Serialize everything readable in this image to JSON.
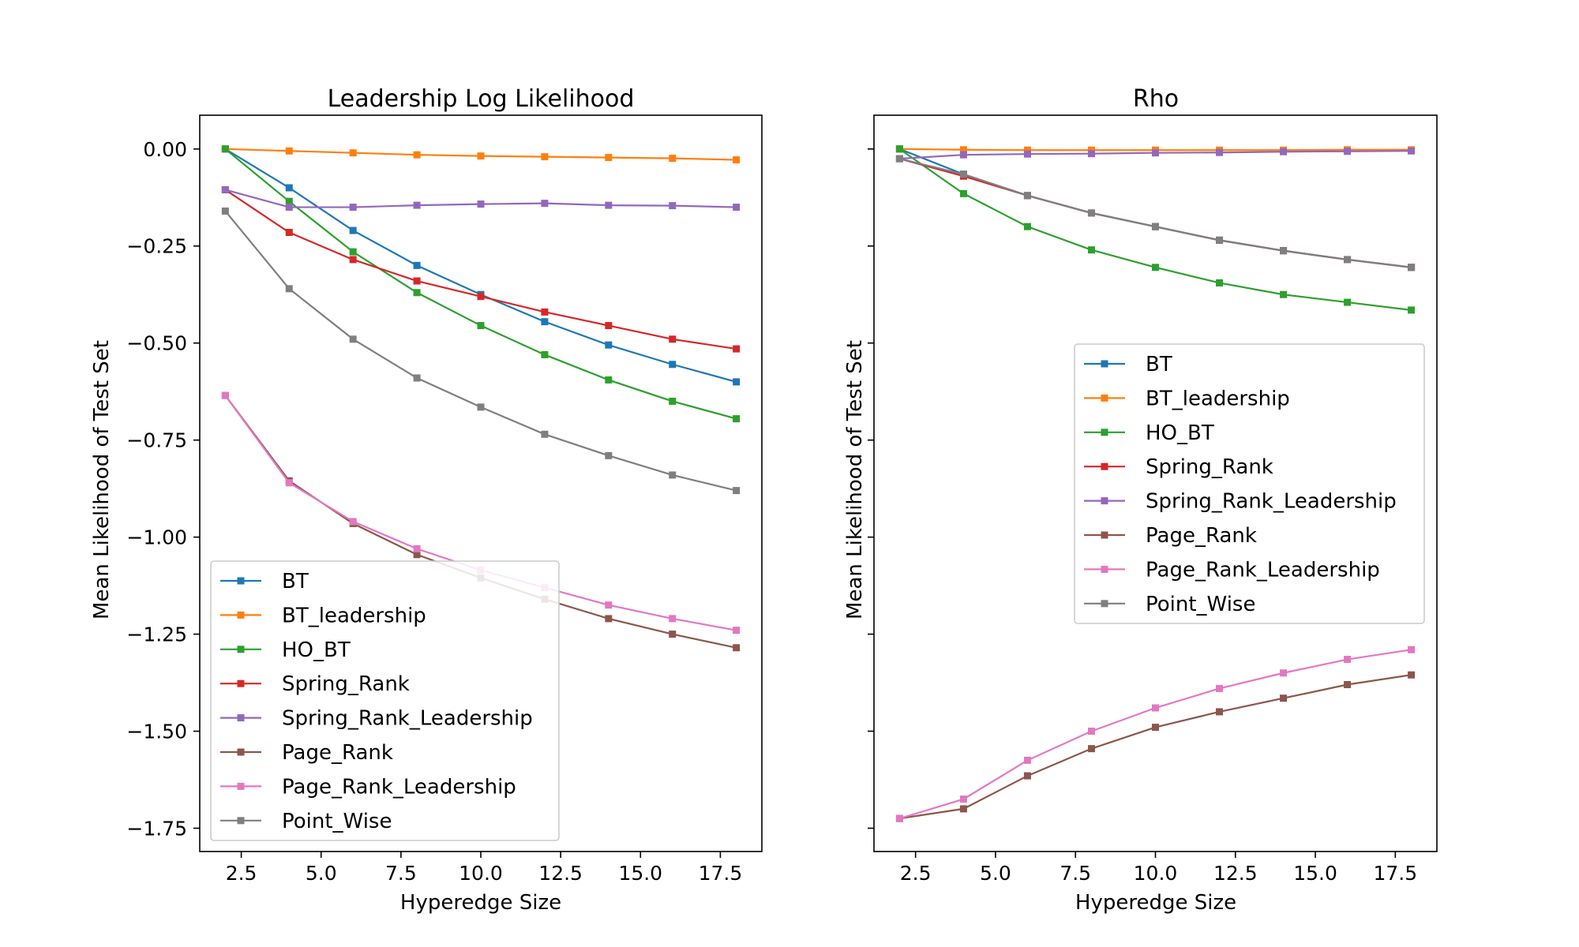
{
  "chart_data": [
    {
      "type": "line",
      "title": "Leadership Log Likelihood",
      "xlabel": "Hyperedge Size",
      "ylabel": "Mean Likelihood of Test Set",
      "xlim": [
        1.2,
        18.8
      ],
      "ylim": [
        -1.81,
        0.087
      ],
      "xticks": [
        2.5,
        5.0,
        7.5,
        10.0,
        12.5,
        15.0,
        17.5
      ],
      "xtick_labels": [
        "2.5",
        "5.0",
        "7.5",
        "10.0",
        "12.5",
        "15.0",
        "17.5"
      ],
      "yticks": [
        0.0,
        -0.25,
        -0.5,
        -0.75,
        -1.0,
        -1.25,
        -1.5,
        -1.75
      ],
      "ytick_labels": [
        "0.00",
        "−0.25",
        "−0.50",
        "−0.75",
        "−1.00",
        "−1.25",
        "−1.50",
        "−1.75"
      ],
      "legend_position": "lower-left",
      "x": [
        2,
        4,
        6,
        8,
        10,
        12,
        14,
        16,
        18
      ],
      "series": [
        {
          "name": "BT",
          "color": "#1f77b4",
          "values": [
            0.0,
            -0.1,
            -0.21,
            -0.3,
            -0.375,
            -0.445,
            -0.505,
            -0.555,
            -0.6
          ]
        },
        {
          "name": "BT_leadership",
          "color": "#ff7f0e",
          "values": [
            0.0,
            -0.005,
            -0.01,
            -0.015,
            -0.018,
            -0.02,
            -0.022,
            -0.024,
            -0.028
          ]
        },
        {
          "name": "HO_BT",
          "color": "#2ca02c",
          "values": [
            0.0,
            -0.135,
            -0.265,
            -0.37,
            -0.455,
            -0.53,
            -0.595,
            -0.65,
            -0.695
          ]
        },
        {
          "name": "Spring_Rank",
          "color": "#d62728",
          "values": [
            -0.105,
            -0.215,
            -0.285,
            -0.34,
            -0.38,
            -0.42,
            -0.455,
            -0.49,
            -0.515
          ]
        },
        {
          "name": "Spring_Rank_Leadership",
          "color": "#9467bd",
          "values": [
            -0.105,
            -0.15,
            -0.15,
            -0.145,
            -0.142,
            -0.14,
            -0.145,
            -0.146,
            -0.15
          ]
        },
        {
          "name": "Page_Rank",
          "color": "#8c564b",
          "values": [
            -0.635,
            -0.855,
            -0.965,
            -1.045,
            -1.105,
            -1.16,
            -1.21,
            -1.25,
            -1.285
          ]
        },
        {
          "name": "Page_Rank_Leadership",
          "color": "#e377c2",
          "values": [
            -0.635,
            -0.86,
            -0.96,
            -1.03,
            -1.085,
            -1.13,
            -1.175,
            -1.21,
            -1.24
          ]
        },
        {
          "name": "Point_Wise",
          "color": "#7f7f7f",
          "values": [
            -0.16,
            -0.36,
            -0.49,
            -0.59,
            -0.665,
            -0.735,
            -0.79,
            -0.84,
            -0.88
          ]
        }
      ]
    },
    {
      "type": "line",
      "title": "Rho",
      "xlabel": "Hyperedge Size",
      "ylabel": "Mean Likelihood of Test Set",
      "xlim": [
        1.2,
        18.8
      ],
      "ylim": [
        -1.81,
        0.087
      ],
      "shared_y_with_left": true,
      "xticks": [
        2.5,
        5.0,
        7.5,
        10.0,
        12.5,
        15.0,
        17.5
      ],
      "xtick_labels": [
        "2.5",
        "5.0",
        "7.5",
        "10.0",
        "12.5",
        "15.0",
        "17.5"
      ],
      "yticks": [
        0.0,
        -0.25,
        -0.5,
        -0.75,
        -1.0,
        -1.25,
        -1.5,
        -1.75
      ],
      "legend_position": "center-right",
      "x": [
        2,
        4,
        6,
        8,
        10,
        12,
        14,
        16,
        18
      ],
      "series": [
        {
          "name": "BT",
          "color": "#1f77b4",
          "values": [
            0.0,
            -0.065,
            -0.12,
            -0.165,
            -0.2,
            -0.235,
            -0.262,
            -0.285,
            -0.305
          ]
        },
        {
          "name": "BT_leadership",
          "color": "#ff7f0e",
          "values": [
            0.0,
            -0.002,
            -0.003,
            -0.003,
            -0.003,
            -0.003,
            -0.003,
            -0.002,
            -0.002
          ]
        },
        {
          "name": "HO_BT",
          "color": "#2ca02c",
          "values": [
            0.0,
            -0.115,
            -0.2,
            -0.26,
            -0.305,
            -0.345,
            -0.375,
            -0.395,
            -0.415
          ]
        },
        {
          "name": "Spring_Rank",
          "color": "#d62728",
          "values": [
            -0.025,
            -0.07,
            -0.12,
            -0.165,
            -0.2,
            -0.235,
            -0.262,
            -0.285,
            -0.305
          ]
        },
        {
          "name": "Spring_Rank_Leadership",
          "color": "#9467bd",
          "values": [
            -0.025,
            -0.015,
            -0.013,
            -0.012,
            -0.01,
            -0.009,
            -0.007,
            -0.006,
            -0.005
          ]
        },
        {
          "name": "Page_Rank",
          "color": "#8c564b",
          "values": [
            -1.725,
            -1.7,
            -1.615,
            -1.545,
            -1.49,
            -1.45,
            -1.415,
            -1.38,
            -1.355
          ]
        },
        {
          "name": "Page_Rank_Leadership",
          "color": "#e377c2",
          "values": [
            -1.725,
            -1.675,
            -1.575,
            -1.5,
            -1.44,
            -1.39,
            -1.35,
            -1.315,
            -1.29
          ]
        },
        {
          "name": "Point_Wise",
          "color": "#7f7f7f",
          "values": [
            -0.025,
            -0.065,
            -0.12,
            -0.165,
            -0.2,
            -0.235,
            -0.262,
            -0.285,
            -0.305
          ]
        }
      ]
    }
  ]
}
